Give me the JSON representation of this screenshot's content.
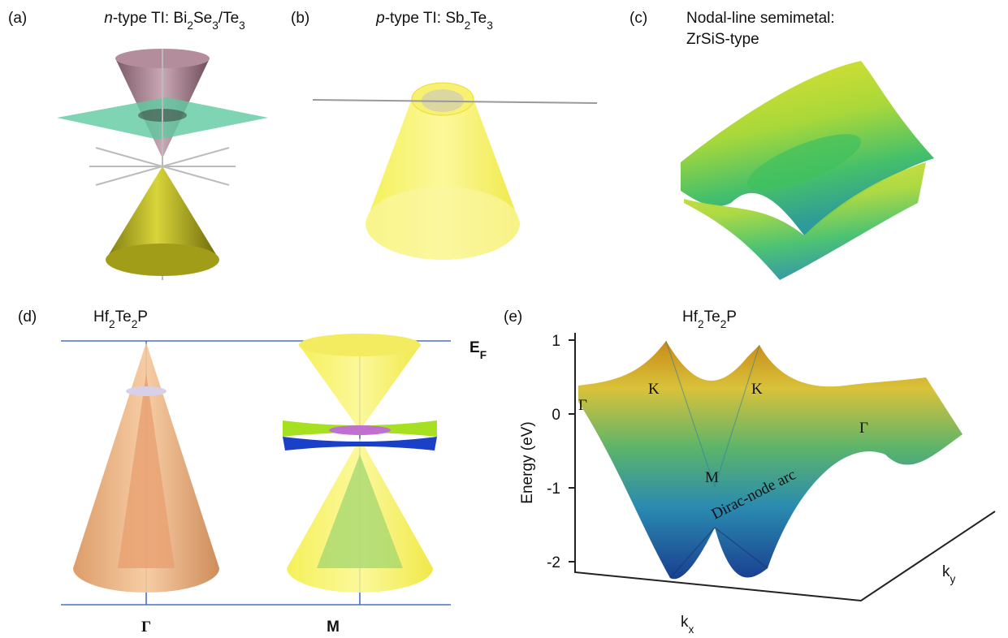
{
  "panels": [
    {
      "label": "(a)",
      "title": [
        {
          "text": "n",
          "italic": true
        },
        {
          "text": "-type TI: Bi"
        },
        {
          "text": "2",
          "sub": true
        },
        {
          "text": "Se"
        },
        {
          "text": "3",
          "sub": true
        },
        {
          "text": "/Te"
        },
        {
          "text": "3",
          "sub": true
        }
      ]
    },
    {
      "label": "(b)",
      "title": [
        {
          "text": "p",
          "italic": true
        },
        {
          "text": "-type TI: Sb"
        },
        {
          "text": "2",
          "sub": true
        },
        {
          "text": "Te"
        },
        {
          "text": "3",
          "sub": true
        }
      ]
    },
    {
      "label": "(c)",
      "title_lines": [
        "Nodal-line semimetal:",
        "ZrSiS-type"
      ]
    },
    {
      "label": "(d)",
      "title": [
        {
          "text": "Hf"
        },
        {
          "text": "2",
          "sub": true
        },
        {
          "text": "Te"
        },
        {
          "text": "2",
          "sub": true
        },
        {
          "text": "P"
        }
      ],
      "fermi_label": [
        {
          "text": "E"
        },
        {
          "text": "F",
          "sub": true
        }
      ],
      "points": [
        "Γ",
        "M"
      ]
    },
    {
      "label": "(e)",
      "title": [
        {
          "text": "Hf"
        },
        {
          "text": "2",
          "sub": true
        },
        {
          "text": "Te"
        },
        {
          "text": "2",
          "sub": true
        },
        {
          "text": "P"
        }
      ],
      "y_label": "Energy (eV)",
      "yticks": [
        1,
        0,
        -1,
        -2
      ],
      "x_label": [
        {
          "text": "k"
        },
        {
          "text": "x",
          "sub": true
        }
      ],
      "z_label": [
        {
          "text": "k"
        },
        {
          "text": "y",
          "sub": true
        }
      ],
      "points": [
        "Γ",
        "K",
        "K",
        "Γ",
        "M"
      ],
      "annotation": "Dirac-node arc"
    }
  ]
}
